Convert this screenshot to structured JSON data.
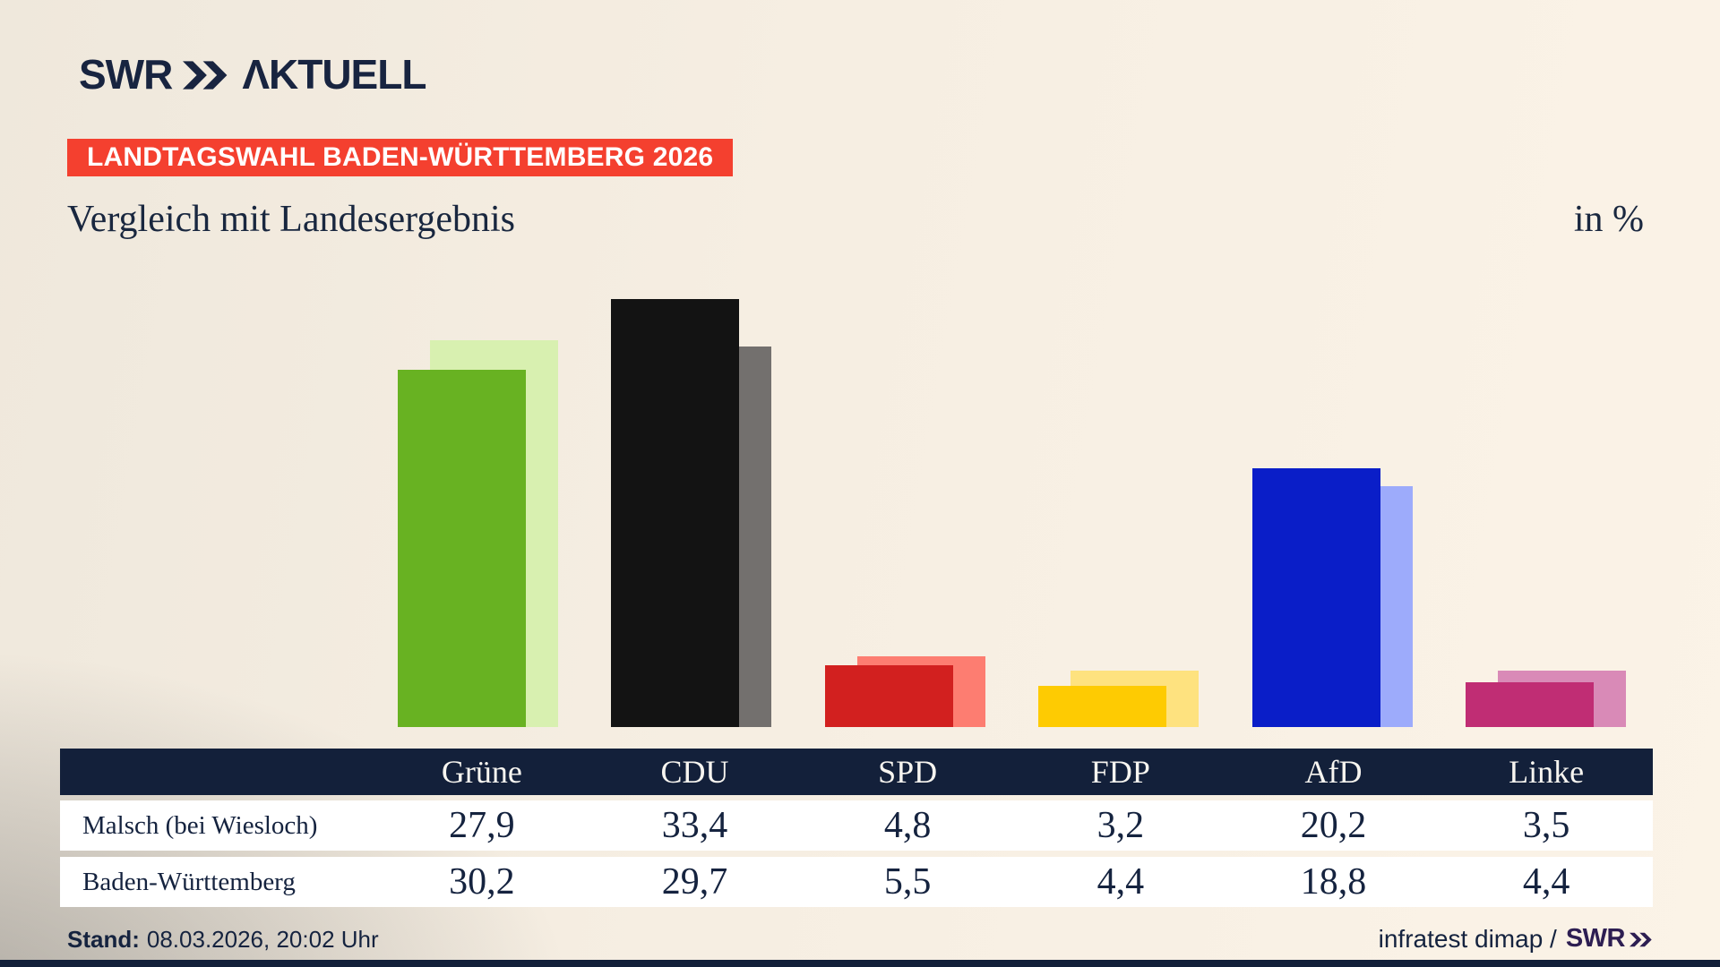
{
  "brand": {
    "swr": "SWR",
    "aktuell": "ΛKTUELL"
  },
  "banner": {
    "label": "LANDTAGSWAHL BADEN-WÜRTTEMBERG 2026",
    "bg_color": "#f4402f"
  },
  "title": "Vergleich mit Landesergebnis",
  "unit_label": "in %",
  "chart_data": {
    "type": "bar",
    "title": "Vergleich mit Landesergebnis",
    "unit": "in %",
    "categories": [
      "Grüne",
      "CDU",
      "SPD",
      "FDP",
      "AfD",
      "Linke"
    ],
    "series": [
      {
        "name": "Malsch (bei Wiesloch)",
        "values": [
          27.9,
          33.4,
          4.8,
          3.2,
          20.2,
          3.5
        ]
      },
      {
        "name": "Baden-Württemberg",
        "values": [
          30.2,
          29.7,
          5.5,
          4.4,
          18.8,
          4.4
        ]
      }
    ],
    "colors": {
      "fg": [
        "#68b222",
        "#131313",
        "#d2201f",
        "#fecb02",
        "#0a1ec8",
        "#c02d74"
      ],
      "bg": [
        "#d8f0b0",
        "#73706e",
        "#fd7d71",
        "#fee27f",
        "#9dabfb",
        "#d98ab7"
      ]
    },
    "ylim": [
      0,
      35
    ],
    "grid": false,
    "legend_position": "table-below"
  },
  "table": {
    "columns": [
      "Grüne",
      "CDU",
      "SPD",
      "FDP",
      "AfD",
      "Linke"
    ],
    "rows": [
      {
        "label": "Malsch (bei Wiesloch)",
        "values": [
          "27,9",
          "33,4",
          "4,8",
          "3,2",
          "20,2",
          "3,5"
        ]
      },
      {
        "label": "Baden-Württemberg",
        "values": [
          "30,2",
          "29,7",
          "5,5",
          "4,4",
          "18,8",
          "4,4"
        ]
      }
    ],
    "header_bg": "#13203a",
    "row_bg": "#ffffff"
  },
  "footer": {
    "stand_label": "Stand:",
    "stand_value": "08.03.2026, 20:02 Uhr",
    "source_text": "infratest dimap /",
    "source_brand": "SWR"
  }
}
